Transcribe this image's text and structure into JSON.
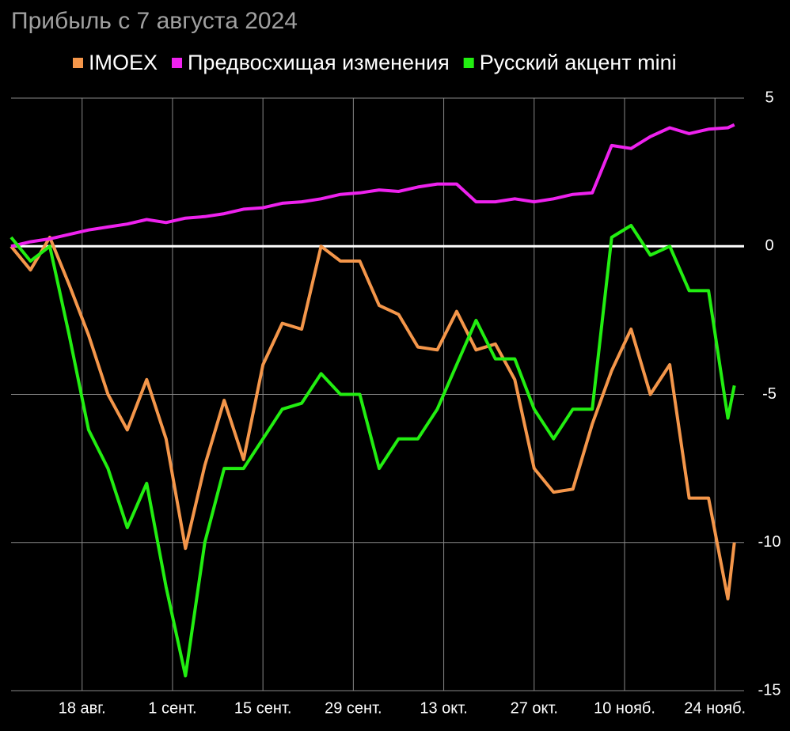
{
  "chart_data": {
    "type": "line",
    "title": "Прибыль с 7 августа 2024",
    "x": [
      "2024-08-07",
      "2024-08-10",
      "2024-08-13",
      "2024-08-16",
      "2024-08-19",
      "2024-08-22",
      "2024-08-25",
      "2024-08-28",
      "2024-08-31",
      "2024-09-03",
      "2024-09-06",
      "2024-09-09",
      "2024-09-12",
      "2024-09-15",
      "2024-09-18",
      "2024-09-21",
      "2024-09-24",
      "2024-09-27",
      "2024-09-30",
      "2024-10-03",
      "2024-10-06",
      "2024-10-09",
      "2024-10-12",
      "2024-10-15",
      "2024-10-18",
      "2024-10-21",
      "2024-10-24",
      "2024-10-27",
      "2024-10-30",
      "2024-11-02",
      "2024-11-05",
      "2024-11-08",
      "2024-11-11",
      "2024-11-14",
      "2024-11-17",
      "2024-11-20",
      "2024-11-23",
      "2024-11-26",
      "2024-11-27"
    ],
    "series": [
      {
        "name": "IMOEX",
        "color": "#f4964a",
        "values": [
          0,
          -0.8,
          0.3,
          -1.3,
          -3,
          -5,
          -6.2,
          -4.5,
          -6.5,
          -10.2,
          -7.4,
          -5.2,
          -7.2,
          -4,
          -2.6,
          -2.8,
          0,
          -0.5,
          -0.5,
          -2,
          -2.3,
          -3.4,
          -3.5,
          -2.2,
          -3.5,
          -3.3,
          -4.5,
          -7.5,
          -8.3,
          -8.2,
          -6,
          -4.2,
          -2.8,
          -5,
          -4,
          -8.5,
          -8.5,
          -11.9,
          -10
        ]
      },
      {
        "name": "Предвосхищая изменения",
        "color": "#ee22ee",
        "values": [
          0,
          0.15,
          0.25,
          0.4,
          0.55,
          0.65,
          0.75,
          0.9,
          0.8,
          0.95,
          1.0,
          1.1,
          1.25,
          1.3,
          1.45,
          1.5,
          1.6,
          1.75,
          1.8,
          1.9,
          1.85,
          2.0,
          2.1,
          2.1,
          1.5,
          1.5,
          1.6,
          1.5,
          1.6,
          1.75,
          1.8,
          3.4,
          3.3,
          3.7,
          4.0,
          3.8,
          3.95,
          4.0,
          4.1
        ]
      },
      {
        "name": "Русский акцент mini",
        "color": "#22ee11",
        "values": [
          0.3,
          -0.5,
          0,
          -3,
          -6.2,
          -7.5,
          -9.5,
          -8,
          -11.5,
          -14.5,
          -10,
          -7.5,
          -7.5,
          -6.5,
          -5.5,
          -5.3,
          -4.3,
          -5,
          -5,
          -7.5,
          -6.5,
          -6.5,
          -5.5,
          -4,
          -2.5,
          -3.8,
          -3.8,
          -5.5,
          -6.5,
          -5.5,
          -5.5,
          0.3,
          0.7,
          -0.3,
          0,
          -1.5,
          -1.5,
          -5.8,
          -4.7
        ]
      }
    ],
    "xlim": [
      "2024-08-07",
      "2024-11-29"
    ],
    "xticks": [
      {
        "value": "2024-08-18",
        "label": "18 авг."
      },
      {
        "value": "2024-09-01",
        "label": "1 сент."
      },
      {
        "value": "2024-09-15",
        "label": "15 сент."
      },
      {
        "value": "2024-09-29",
        "label": "29 сент."
      },
      {
        "value": "2024-10-13",
        "label": "13 окт."
      },
      {
        "value": "2024-10-27",
        "label": "27 окт."
      },
      {
        "value": "2024-11-10",
        "label": "10 нояб."
      },
      {
        "value": "2024-11-24",
        "label": "24 нояб."
      }
    ],
    "ylim": [
      -15,
      5
    ],
    "yticks": [
      5,
      0,
      -5,
      -10,
      -15
    ],
    "grid": true
  }
}
